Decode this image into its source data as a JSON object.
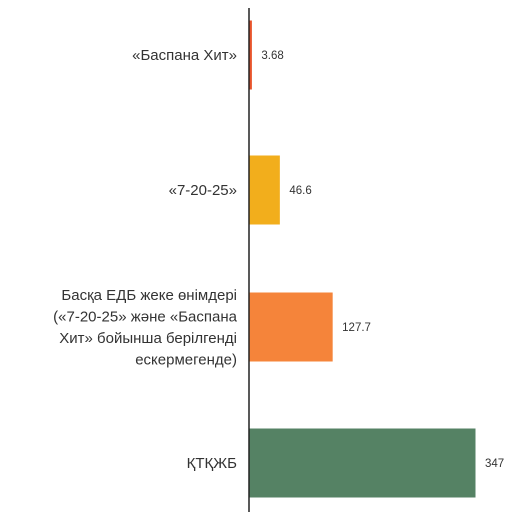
{
  "chart_data": {
    "type": "bar",
    "orientation": "horizontal",
    "title": "",
    "xlabel": "",
    "ylabel": "",
    "grid": false,
    "categories": [
      [
        "«Баспана Хит»"
      ],
      [
        "«7-20-25»"
      ],
      [
        "Басқа ЕДБ жеке өнімдері",
        "(«7-20-25» және «Баспана",
        "Хит» бойынша берілгенді",
        "ескермегенде)"
      ],
      [
        "ҚТҚЖБ"
      ]
    ],
    "values": [
      3.68,
      46.6,
      127.7,
      347
    ],
    "value_labels": [
      "3.68",
      "46.6",
      "127.7",
      "347"
    ],
    "colors": [
      "#e8542b",
      "#f2ae1c",
      "#f5843a",
      "#558264"
    ],
    "xlim": [
      0,
      347
    ]
  }
}
